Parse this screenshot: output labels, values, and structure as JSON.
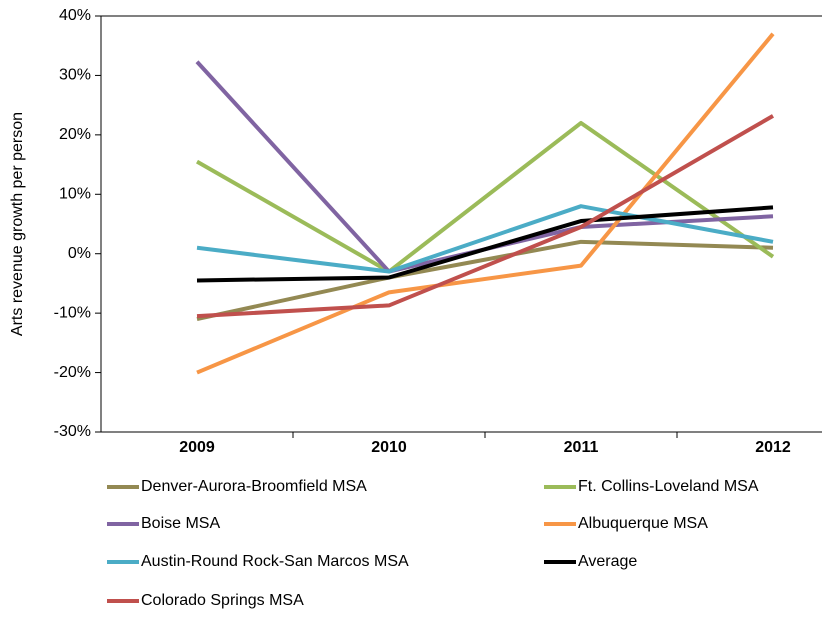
{
  "chart_data": {
    "type": "line",
    "y_label": "Arts revenue growth per person",
    "categories": [
      "2009",
      "2010",
      "2011",
      "2012"
    ],
    "ylim": [
      -30,
      40
    ],
    "yticks": [
      {
        "value": -30,
        "label": "-30%"
      },
      {
        "value": -20,
        "label": "-20%"
      },
      {
        "value": -10,
        "label": "-10%"
      },
      {
        "value": 0,
        "label": "0%"
      },
      {
        "value": 10,
        "label": "10%"
      },
      {
        "value": 20,
        "label": "20%"
      },
      {
        "value": 30,
        "label": "30%"
      },
      {
        "value": 40,
        "label": "40%"
      }
    ],
    "grid": false,
    "series": [
      {
        "name": "Denver-Aurora-Broomfield MSA",
        "color": "#938953",
        "values": [
          -11,
          -4,
          2,
          1
        ]
      },
      {
        "name": "Ft. Collins-Loveland MSA",
        "color": "#9bbb59",
        "values": [
          15.5,
          -3,
          22,
          -0.5
        ]
      },
      {
        "name": "Boise MSA",
        "color": "#8064a2",
        "values": [
          32.3,
          -3,
          4.5,
          6.3
        ]
      },
      {
        "name": "Albuquerque MSA",
        "color": "#f79646",
        "values": [
          -20,
          -6.5,
          -2,
          37
        ]
      },
      {
        "name": "Austin-Round Rock-San Marcos MSA",
        "color": "#4bacc6",
        "values": [
          1,
          -3,
          8,
          2
        ]
      },
      {
        "name": "Average",
        "color": "#000000",
        "values": [
          -4.5,
          -4,
          5.5,
          7.8
        ]
      },
      {
        "name": "Colorado Springs MSA",
        "color": "#c0504d",
        "values": [
          -10.5,
          -8.7,
          4.5,
          23.2
        ]
      }
    ]
  }
}
